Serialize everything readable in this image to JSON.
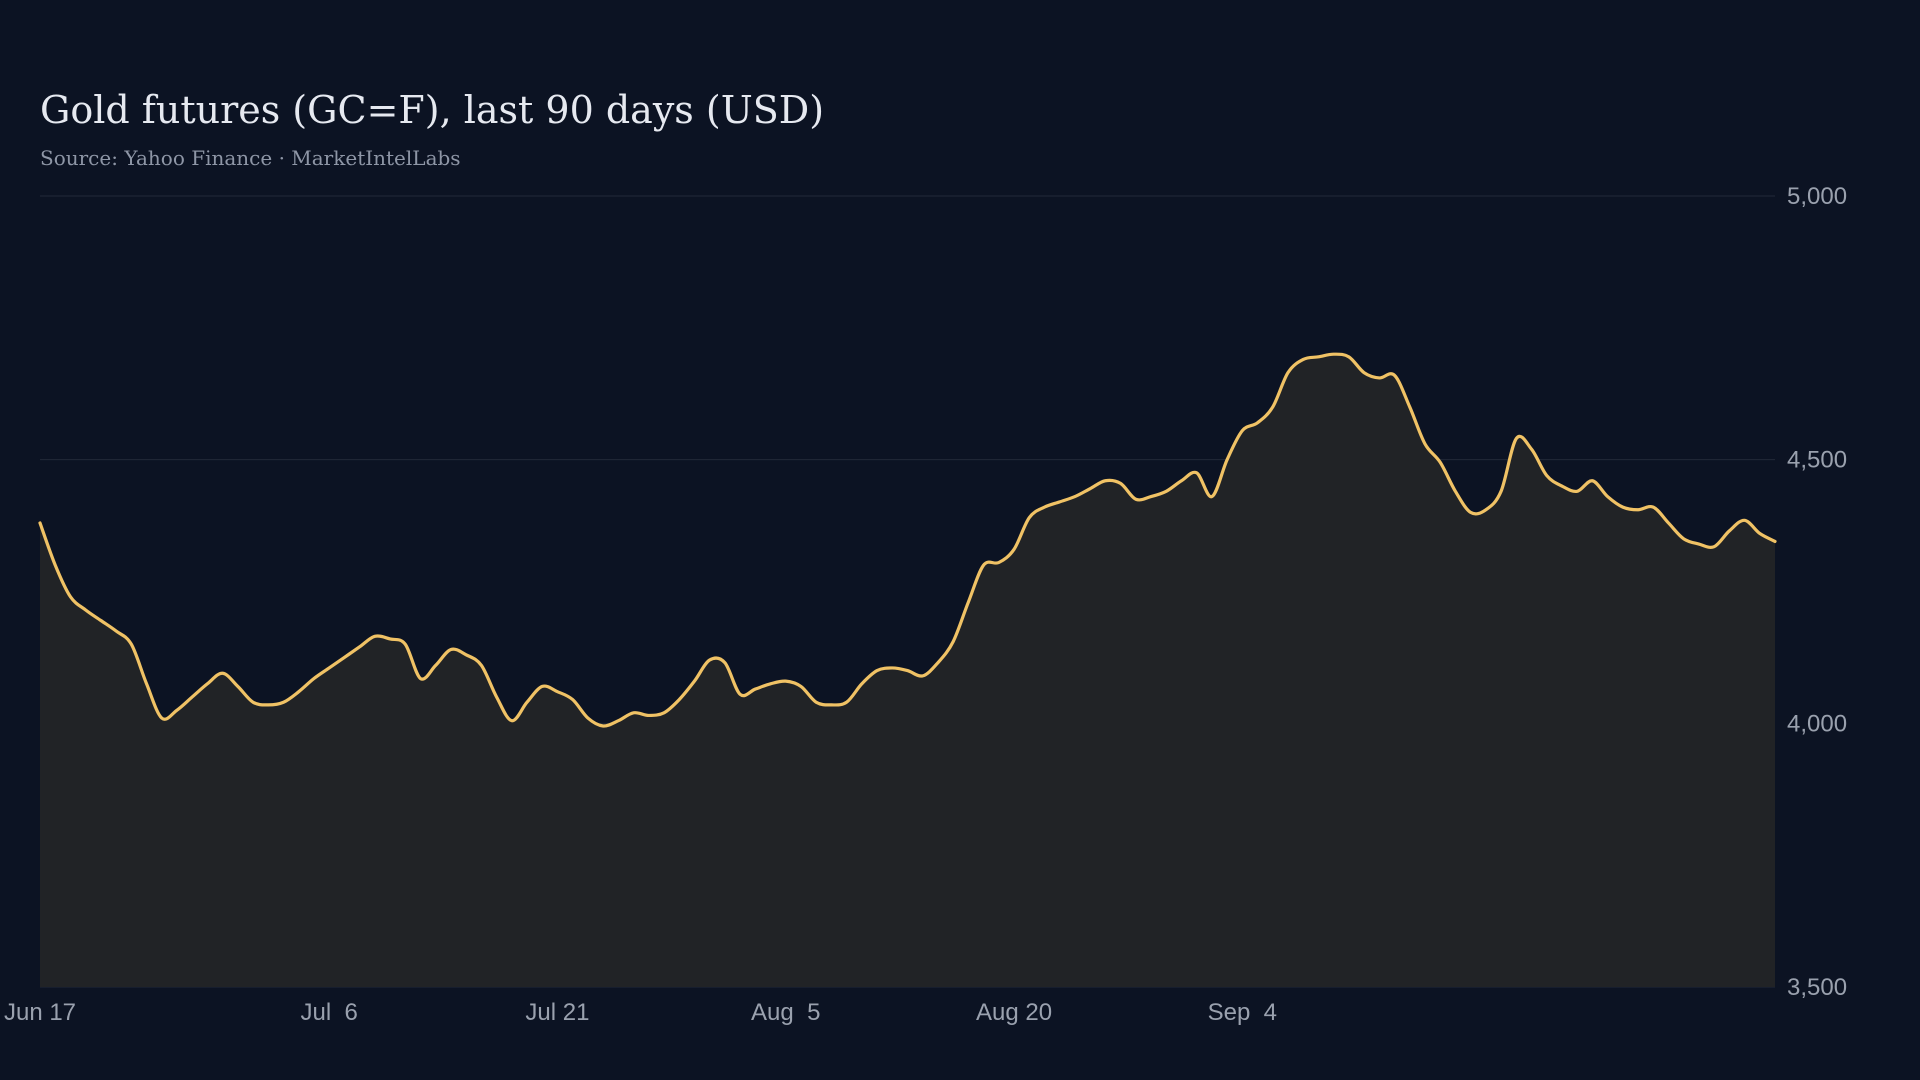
{
  "chart_data": {
    "type": "area",
    "title": "Gold futures (GC=F), last 90 days (USD)",
    "subtitle": "Source: Yahoo Finance · MarketIntelLabs",
    "xlabel": "",
    "ylabel": "",
    "ylim": [
      3500,
      5000
    ],
    "yticks": [
      3500,
      4000,
      4500,
      5000
    ],
    "ytick_labels": [
      "3,500",
      "4,000",
      "4,500",
      "5,000"
    ],
    "xticks": [
      0,
      19,
      34,
      49,
      64,
      79
    ],
    "xtick_labels": [
      "Jun 17",
      "Jul  6",
      "Jul 21",
      "Aug  5",
      "Aug 20",
      "Sep  4"
    ],
    "grid": true,
    "colors": {
      "background": "#0c1323",
      "line": "#f0c265",
      "area": "#212326",
      "grid": "#222a38"
    },
    "series": [
      {
        "values": [
          4380,
          4300,
          4240,
          4215,
          4195,
          4175,
          4150,
          4075,
          4010,
          4025,
          4050,
          4075,
          4095,
          4070,
          4040,
          4035,
          4040,
          4060,
          4085,
          4105,
          4125,
          4145,
          4165,
          4160,
          4150,
          4085,
          4110,
          4140,
          4130,
          4110,
          4050,
          4005,
          4040,
          4070,
          4060,
          4045,
          4010,
          3995,
          4005,
          4020,
          4015,
          4020,
          4045,
          4080,
          4120,
          4115,
          4055,
          4065,
          4075,
          4080,
          4070,
          4040,
          4035,
          4040,
          4075,
          4100,
          4105,
          4100,
          4090,
          4115,
          4155,
          4230,
          4300,
          4305,
          4330,
          4390,
          4410,
          4420,
          4430,
          4445,
          4460,
          4455,
          4425,
          4430,
          4440,
          4460,
          4475,
          4430,
          4500,
          4555,
          4570,
          4600,
          4665,
          4690,
          4695,
          4700,
          4695,
          4665,
          4655,
          4660,
          4600,
          4530,
          4495,
          4440,
          4400,
          4405,
          4440,
          4540,
          4520,
          4470,
          4450,
          4440,
          4460,
          4430,
          4410,
          4405,
          4410,
          4380,
          4350,
          4340,
          4335,
          4365,
          4385,
          4360,
          4345
        ]
      }
    ]
  }
}
